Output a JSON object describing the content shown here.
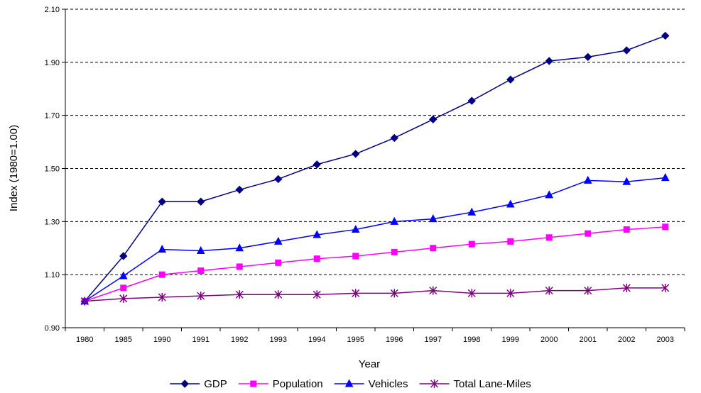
{
  "chart_data": {
    "type": "line",
    "title": "",
    "xlabel": "Year",
    "ylabel": "Index (1980=1.00)",
    "categories": [
      "1980",
      "1985",
      "1990",
      "1991",
      "1992",
      "1993",
      "1994",
      "1995",
      "1996",
      "1997",
      "1998",
      "1999",
      "2000",
      "2001",
      "2002",
      "2003"
    ],
    "ylim": [
      0.9,
      2.1
    ],
    "yticks": [
      "0.90",
      "1.10",
      "1.30",
      "1.50",
      "1.70",
      "1.90",
      "2.10"
    ],
    "grid": "horizontal dashed",
    "legend_position": "bottom",
    "series": [
      {
        "name": "GDP",
        "color": "#000080",
        "marker": "diamond",
        "values": [
          1.0,
          1.17,
          1.375,
          1.375,
          1.42,
          1.46,
          1.515,
          1.555,
          1.615,
          1.685,
          1.755,
          1.835,
          1.905,
          1.92,
          1.945,
          2.0
        ]
      },
      {
        "name": "Population",
        "color": "#FF00FF",
        "marker": "square",
        "values": [
          1.0,
          1.05,
          1.1,
          1.115,
          1.13,
          1.145,
          1.16,
          1.17,
          1.185,
          1.2,
          1.215,
          1.225,
          1.24,
          1.255,
          1.27,
          1.28
        ]
      },
      {
        "name": "Vehicles",
        "color": "#0000FF",
        "marker": "triangle",
        "values": [
          1.0,
          1.095,
          1.195,
          1.19,
          1.2,
          1.225,
          1.25,
          1.27,
          1.3,
          1.31,
          1.335,
          1.365,
          1.4,
          1.455,
          1.45,
          1.465
        ]
      },
      {
        "name": "Total Lane-Miles",
        "color": "#800080",
        "marker": "asterisk",
        "values": [
          1.0,
          1.01,
          1.015,
          1.02,
          1.025,
          1.025,
          1.025,
          1.03,
          1.03,
          1.04,
          1.03,
          1.03,
          1.04,
          1.04,
          1.05,
          1.05
        ]
      }
    ]
  }
}
